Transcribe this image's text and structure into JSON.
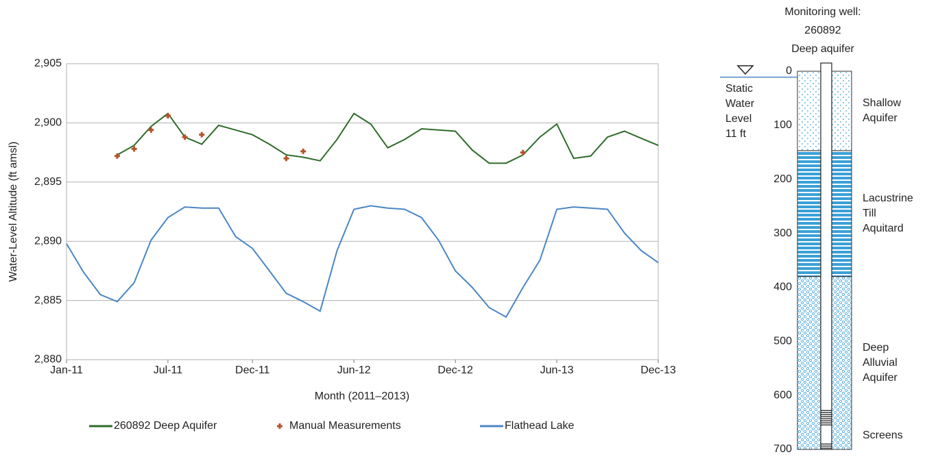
{
  "chart_data": {
    "type": "line",
    "xlabel": "Month (2011–2013)",
    "ylabel": "Water-Level Altitude (ft amsl)",
    "x": [
      "2011-01",
      "2011-02",
      "2011-03",
      "2011-04",
      "2011-05",
      "2011-06",
      "2011-07",
      "2011-08",
      "2011-09",
      "2011-10",
      "2011-11",
      "2011-12",
      "2012-01",
      "2012-02",
      "2012-03",
      "2012-04",
      "2012-05",
      "2012-06",
      "2012-07",
      "2012-08",
      "2012-09",
      "2012-10",
      "2012-11",
      "2012-12",
      "2013-01",
      "2013-02",
      "2013-03",
      "2013-04",
      "2013-05",
      "2013-06",
      "2013-07",
      "2013-08",
      "2013-09",
      "2013-10",
      "2013-11",
      "2013-12"
    ],
    "xlim": [
      "2011-01",
      "2013-12"
    ],
    "xticks": [
      {
        "value": "2011-01",
        "label": "Jan-11"
      },
      {
        "value": "2011-07",
        "label": "Jul-11"
      },
      {
        "value": "2011-12",
        "label": "Dec-11"
      },
      {
        "value": "2012-06",
        "label": "Jun-12"
      },
      {
        "value": "2012-12",
        "label": "Dec-12"
      },
      {
        "value": "2013-06",
        "label": "Jun-13"
      },
      {
        "value": "2013-12",
        "label": "Dec-13"
      }
    ],
    "ylim": [
      2880,
      2905
    ],
    "yticks": [
      {
        "value": 2880,
        "label": "2,880"
      },
      {
        "value": 2885,
        "label": "2,885"
      },
      {
        "value": 2890,
        "label": "2,890"
      },
      {
        "value": 2895,
        "label": "2,895"
      },
      {
        "value": 2900,
        "label": "2,900"
      },
      {
        "value": 2905,
        "label": "2,905"
      }
    ],
    "grid": true,
    "series": [
      {
        "name": "Flathead Lake",
        "color": "#4a86c5",
        "marker": "none",
        "values": [
          2889.8,
          2887.4,
          2885.5,
          2884.9,
          2886.5,
          2890.1,
          2892.0,
          2892.9,
          2892.8,
          2892.8,
          2890.4,
          2889.4,
          2887.5,
          2885.6,
          2884.9,
          2884.1,
          2889.2,
          2892.7,
          2893.0,
          2892.8,
          2892.7,
          2892.0,
          2890.1,
          2887.5,
          2886.1,
          2884.4,
          2883.6,
          2886.1,
          2888.4,
          2892.7,
          2892.9,
          2892.8,
          2892.7,
          2890.7,
          2889.2,
          2888.2
        ]
      },
      {
        "name": "260892 Deep Aquifer",
        "color": "#2e6b2a",
        "marker": "none",
        "values": [
          null,
          null,
          null,
          2897.3,
          2898.1,
          2899.7,
          2900.8,
          2898.8,
          2898.2,
          2899.8,
          2899.4,
          2899.0,
          2898.2,
          2897.3,
          2897.1,
          2896.8,
          2898.6,
          2900.8,
          2899.9,
          2897.9,
          2898.6,
          2899.5,
          2899.4,
          2899.3,
          2897.7,
          2896.6,
          2896.6,
          2897.3,
          2898.8,
          2899.9,
          2897.0,
          2897.2,
          2898.8,
          2899.3,
          2898.7,
          2898.1
        ]
      },
      {
        "name": "Manual Measurements",
        "color": "#b5522b",
        "marker": "plus",
        "values": [
          null,
          null,
          null,
          2897.2,
          2897.8,
          2899.4,
          2900.6,
          2898.8,
          2899.0,
          null,
          null,
          null,
          null,
          2897.0,
          2897.6,
          null,
          null,
          null,
          null,
          null,
          null,
          null,
          null,
          null,
          null,
          null,
          null,
          2897.5,
          null,
          null,
          null,
          null,
          null,
          null,
          null,
          null
        ]
      }
    ],
    "legend_order": [
      1,
      2,
      0
    ]
  },
  "well_diagram": {
    "title_lines": [
      "Monitoring well:",
      "260892",
      "Deep aquifer"
    ],
    "depth_lim": [
      0,
      700
    ],
    "depth_ticks": [
      0,
      100,
      200,
      300,
      400,
      500,
      600,
      700
    ],
    "static_water_level": {
      "depth": 11,
      "label_lines": [
        "Static",
        "Water",
        "Level",
        "11 ft"
      ],
      "color": "#4a86c5"
    },
    "layers": [
      {
        "label_lines": [
          "Shallow",
          "Aquifer"
        ],
        "top": 0,
        "bottom": 147,
        "pattern": "dots",
        "color": "#3aa0d8"
      },
      {
        "label_lines": [
          "Lacustrine",
          "Till",
          "Aquitard"
        ],
        "top": 147,
        "bottom": 380,
        "pattern": "stripes",
        "color": "#3aa0d8"
      },
      {
        "label_lines": [
          "Deep",
          "Alluvial",
          "Aquifer"
        ],
        "top": 380,
        "bottom": 700,
        "pattern": "circles",
        "color": "#3aa0d8"
      }
    ],
    "screens_label": "Screens",
    "screens": [
      [
        628,
        655
      ],
      [
        690,
        700
      ]
    ]
  }
}
